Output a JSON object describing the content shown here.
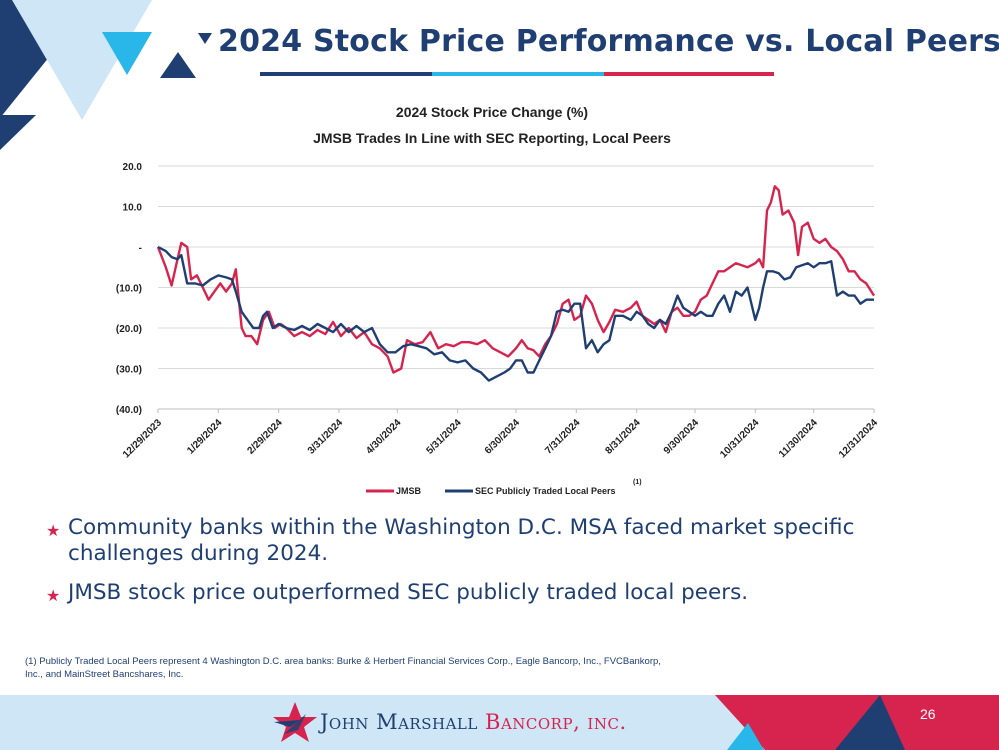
{
  "slide": {
    "title": "2024 Stock Price Performance vs. Local Peers",
    "page_number": "26",
    "brand": {
      "name_part1": "John Marshall",
      "name_part2": " Bancorp, inc."
    },
    "colors": {
      "navy": "#1f3f73",
      "red": "#d6244f",
      "cyan": "#29b6e8",
      "light_blue": "#cfe6f7"
    }
  },
  "bullets": [
    {
      "text": "Community banks within the Washington D.C. MSA faced market specific challenges during 2024."
    },
    {
      "text": "JMSB stock price outperformed SEC publicly traded local peers."
    }
  ],
  "footnote": "(1) Publicly Traded Local Peers represent 4 Washington D.C. area banks: Burke & Herbert Financial Services Corp., Eagle Bancorp, Inc., FVCBankorp, Inc., and MainStreet Bancshares, Inc.",
  "icons": {
    "bullet": "star-icon",
    "logo": "star-logo-icon"
  },
  "chart_data": {
    "type": "line",
    "title_line1": "2024 Stock Price Change (%)",
    "title_line2": "JMSB Trades In Line with SEC Reporting, Local Peers",
    "ylim": [
      -40,
      20
    ],
    "yticks": [
      20,
      10,
      0,
      -10,
      -20,
      -30,
      -40
    ],
    "ytick_labels": [
      "20.0",
      "10.0",
      "-",
      "(10.0)",
      "(20.0)",
      "(30.0)",
      "(40.0)"
    ],
    "xlim": [
      "2023-12-29",
      "2024-12-31"
    ],
    "xticks": [
      "2023-12-29",
      "2024-01-29",
      "2024-02-29",
      "2024-03-31",
      "2024-04-30",
      "2024-05-31",
      "2024-06-30",
      "2024-07-31",
      "2024-08-31",
      "2024-09-30",
      "2024-10-31",
      "2024-11-30",
      "2024-12-31"
    ],
    "xtick_labels": [
      "12/29/2023",
      "1/29/2024",
      "2/29/2024",
      "3/31/2024",
      "4/30/2024",
      "5/31/2024",
      "6/30/2024",
      "7/31/2024",
      "8/31/2024",
      "9/30/2024",
      "10/31/2024",
      "11/30/2024",
      "12/31/2024"
    ],
    "grid": "horizontal",
    "legend_position": "bottom-center",
    "legend_superscript": "(1)",
    "series": [
      {
        "name": "JMSB",
        "color": "#d6244f",
        "points": [
          [
            "2023-12-29",
            0
          ],
          [
            "2024-01-02",
            -5
          ],
          [
            "2024-01-05",
            -9.5
          ],
          [
            "2024-01-08",
            -3
          ],
          [
            "2024-01-10",
            1
          ],
          [
            "2024-01-13",
            0
          ],
          [
            "2024-01-15",
            -8
          ],
          [
            "2024-01-18",
            -7
          ],
          [
            "2024-01-21",
            -10
          ],
          [
            "2024-01-24",
            -13
          ],
          [
            "2024-01-27",
            -11
          ],
          [
            "2024-01-30",
            -9
          ],
          [
            "2024-02-02",
            -11
          ],
          [
            "2024-02-05",
            -9
          ],
          [
            "2024-02-07",
            -5.5
          ],
          [
            "2024-02-10",
            -20
          ],
          [
            "2024-02-12",
            -22
          ],
          [
            "2024-02-15",
            -22
          ],
          [
            "2024-02-18",
            -24
          ],
          [
            "2024-02-21",
            -18
          ],
          [
            "2024-02-24",
            -16
          ],
          [
            "2024-02-27",
            -20
          ],
          [
            "2024-03-01",
            -19
          ],
          [
            "2024-03-04",
            -20
          ],
          [
            "2024-03-08",
            -22
          ],
          [
            "2024-03-12",
            -21
          ],
          [
            "2024-03-16",
            -22
          ],
          [
            "2024-03-20",
            -20.5
          ],
          [
            "2024-03-24",
            -21.5
          ],
          [
            "2024-03-28",
            -18.5
          ],
          [
            "2024-04-01",
            -22
          ],
          [
            "2024-04-05",
            -20
          ],
          [
            "2024-04-09",
            -22.5
          ],
          [
            "2024-04-13",
            -21
          ],
          [
            "2024-04-17",
            -24
          ],
          [
            "2024-04-21",
            -25
          ],
          [
            "2024-04-25",
            -27
          ],
          [
            "2024-04-28",
            -31
          ],
          [
            "2024-05-02",
            -30
          ],
          [
            "2024-05-05",
            -23
          ],
          [
            "2024-05-09",
            -24
          ],
          [
            "2024-05-13",
            -23.5
          ],
          [
            "2024-05-17",
            -21
          ],
          [
            "2024-05-21",
            -25
          ],
          [
            "2024-05-25",
            -24
          ],
          [
            "2024-05-29",
            -24.5
          ],
          [
            "2024-06-02",
            -23.5
          ],
          [
            "2024-06-06",
            -23.5
          ],
          [
            "2024-06-10",
            -24
          ],
          [
            "2024-06-14",
            -23
          ],
          [
            "2024-06-18",
            -25
          ],
          [
            "2024-06-22",
            -26
          ],
          [
            "2024-06-26",
            -27
          ],
          [
            "2024-06-30",
            -25
          ],
          [
            "2024-07-03",
            -23
          ],
          [
            "2024-07-06",
            -25
          ],
          [
            "2024-07-09",
            -25.5
          ],
          [
            "2024-07-12",
            -27
          ],
          [
            "2024-07-15",
            -24
          ],
          [
            "2024-07-18",
            -22
          ],
          [
            "2024-07-21",
            -19
          ],
          [
            "2024-07-24",
            -14
          ],
          [
            "2024-07-27",
            -13
          ],
          [
            "2024-07-30",
            -18
          ],
          [
            "2024-08-02",
            -17
          ],
          [
            "2024-08-05",
            -12
          ],
          [
            "2024-08-08",
            -14
          ],
          [
            "2024-08-11",
            -18
          ],
          [
            "2024-08-14",
            -21
          ],
          [
            "2024-08-17",
            -18.5
          ],
          [
            "2024-08-20",
            -15.5
          ],
          [
            "2024-08-24",
            -16
          ],
          [
            "2024-08-28",
            -15
          ],
          [
            "2024-08-31",
            -13.5
          ],
          [
            "2024-09-03",
            -17
          ],
          [
            "2024-09-06",
            -18
          ],
          [
            "2024-09-09",
            -19
          ],
          [
            "2024-09-12",
            -18
          ],
          [
            "2024-09-15",
            -21
          ],
          [
            "2024-09-18",
            -16
          ],
          [
            "2024-09-21",
            -15
          ],
          [
            "2024-09-24",
            -17
          ],
          [
            "2024-09-27",
            -17
          ],
          [
            "2024-09-30",
            -16
          ],
          [
            "2024-10-03",
            -13
          ],
          [
            "2024-10-06",
            -12
          ],
          [
            "2024-10-09",
            -9
          ],
          [
            "2024-10-12",
            -6
          ],
          [
            "2024-10-15",
            -6
          ],
          [
            "2024-10-18",
            -5
          ],
          [
            "2024-10-21",
            -4
          ],
          [
            "2024-10-24",
            -4.5
          ],
          [
            "2024-10-27",
            -5
          ],
          [
            "2024-10-31",
            -4
          ],
          [
            "2024-11-02",
            -3
          ],
          [
            "2024-11-04",
            -5
          ],
          [
            "2024-11-06",
            9
          ],
          [
            "2024-11-08",
            11
          ],
          [
            "2024-11-10",
            15
          ],
          [
            "2024-11-12",
            14
          ],
          [
            "2024-11-14",
            8
          ],
          [
            "2024-11-17",
            9
          ],
          [
            "2024-11-20",
            6
          ],
          [
            "2024-11-22",
            -2
          ],
          [
            "2024-11-24",
            5
          ],
          [
            "2024-11-27",
            6
          ],
          [
            "2024-11-30",
            2
          ],
          [
            "2024-12-03",
            1
          ],
          [
            "2024-12-06",
            2
          ],
          [
            "2024-12-09",
            0
          ],
          [
            "2024-12-12",
            -1
          ],
          [
            "2024-12-15",
            -3
          ],
          [
            "2024-12-18",
            -6
          ],
          [
            "2024-12-21",
            -6
          ],
          [
            "2024-12-24",
            -8
          ],
          [
            "2024-12-27",
            -9
          ],
          [
            "2024-12-31",
            -12
          ]
        ]
      },
      {
        "name": "SEC Publicly Traded Local Peers",
        "color": "#1f3f73",
        "points": [
          [
            "2023-12-29",
            0
          ],
          [
            "2024-01-02",
            -1
          ],
          [
            "2024-01-05",
            -2.5
          ],
          [
            "2024-01-08",
            -3
          ],
          [
            "2024-01-10",
            -2
          ],
          [
            "2024-01-13",
            -9
          ],
          [
            "2024-01-17",
            -9
          ],
          [
            "2024-01-21",
            -9.5
          ],
          [
            "2024-01-25",
            -8
          ],
          [
            "2024-01-29",
            -7
          ],
          [
            "2024-02-02",
            -7.5
          ],
          [
            "2024-02-05",
            -8
          ],
          [
            "2024-02-07",
            -11
          ],
          [
            "2024-02-10",
            -16
          ],
          [
            "2024-02-13",
            -18
          ],
          [
            "2024-02-16",
            -20
          ],
          [
            "2024-02-19",
            -20
          ],
          [
            "2024-02-21",
            -17
          ],
          [
            "2024-02-23",
            -16
          ],
          [
            "2024-02-26",
            -20
          ],
          [
            "2024-02-29",
            -19
          ],
          [
            "2024-03-04",
            -20
          ],
          [
            "2024-03-08",
            -20.5
          ],
          [
            "2024-03-12",
            -19.5
          ],
          [
            "2024-03-16",
            -20.5
          ],
          [
            "2024-03-20",
            -19
          ],
          [
            "2024-03-24",
            -20
          ],
          [
            "2024-03-28",
            -21
          ],
          [
            "2024-04-01",
            -19
          ],
          [
            "2024-04-05",
            -21
          ],
          [
            "2024-04-09",
            -19.5
          ],
          [
            "2024-04-13",
            -21
          ],
          [
            "2024-04-17",
            -20
          ],
          [
            "2024-04-21",
            -24
          ],
          [
            "2024-04-25",
            -26
          ],
          [
            "2024-04-29",
            -26
          ],
          [
            "2024-05-03",
            -24.5
          ],
          [
            "2024-05-07",
            -24
          ],
          [
            "2024-05-11",
            -24.5
          ],
          [
            "2024-05-15",
            -25
          ],
          [
            "2024-05-19",
            -26.5
          ],
          [
            "2024-05-23",
            -26
          ],
          [
            "2024-05-27",
            -28
          ],
          [
            "2024-05-31",
            -28.5
          ],
          [
            "2024-06-04",
            -28
          ],
          [
            "2024-06-08",
            -30
          ],
          [
            "2024-06-12",
            -31
          ],
          [
            "2024-06-16",
            -33
          ],
          [
            "2024-06-20",
            -32
          ],
          [
            "2024-06-24",
            -31
          ],
          [
            "2024-06-27",
            -30
          ],
          [
            "2024-06-30",
            -28
          ],
          [
            "2024-07-03",
            -28
          ],
          [
            "2024-07-06",
            -31
          ],
          [
            "2024-07-09",
            -31
          ],
          [
            "2024-07-12",
            -28
          ],
          [
            "2024-07-15",
            -25
          ],
          [
            "2024-07-18",
            -22
          ],
          [
            "2024-07-21",
            -16
          ],
          [
            "2024-07-24",
            -15.5
          ],
          [
            "2024-07-27",
            -16
          ],
          [
            "2024-07-30",
            -14
          ],
          [
            "2024-08-02",
            -14
          ],
          [
            "2024-08-05",
            -25
          ],
          [
            "2024-08-08",
            -23
          ],
          [
            "2024-08-11",
            -26
          ],
          [
            "2024-08-14",
            -24
          ],
          [
            "2024-08-17",
            -23
          ],
          [
            "2024-08-20",
            -17
          ],
          [
            "2024-08-24",
            -17
          ],
          [
            "2024-08-28",
            -18
          ],
          [
            "2024-08-31",
            -16
          ],
          [
            "2024-09-03",
            -17
          ],
          [
            "2024-09-06",
            -19
          ],
          [
            "2024-09-09",
            -20
          ],
          [
            "2024-09-12",
            -18
          ],
          [
            "2024-09-15",
            -19
          ],
          [
            "2024-09-18",
            -16
          ],
          [
            "2024-09-21",
            -12
          ],
          [
            "2024-09-24",
            -15
          ],
          [
            "2024-09-27",
            -16
          ],
          [
            "2024-09-30",
            -17
          ],
          [
            "2024-10-03",
            -16
          ],
          [
            "2024-10-06",
            -17
          ],
          [
            "2024-10-09",
            -17
          ],
          [
            "2024-10-12",
            -14
          ],
          [
            "2024-10-15",
            -12
          ],
          [
            "2024-10-18",
            -16
          ],
          [
            "2024-10-21",
            -11
          ],
          [
            "2024-10-24",
            -12
          ],
          [
            "2024-10-27",
            -10
          ],
          [
            "2024-10-31",
            -18
          ],
          [
            "2024-11-02",
            -15
          ],
          [
            "2024-11-04",
            -10
          ],
          [
            "2024-11-06",
            -6
          ],
          [
            "2024-11-09",
            -6
          ],
          [
            "2024-11-12",
            -6.5
          ],
          [
            "2024-11-15",
            -8
          ],
          [
            "2024-11-18",
            -7.5
          ],
          [
            "2024-11-21",
            -5
          ],
          [
            "2024-11-24",
            -4.5
          ],
          [
            "2024-11-27",
            -4
          ],
          [
            "2024-11-30",
            -5
          ],
          [
            "2024-12-03",
            -4
          ],
          [
            "2024-12-06",
            -4
          ],
          [
            "2024-12-09",
            -3.5
          ],
          [
            "2024-12-12",
            -12
          ],
          [
            "2024-12-15",
            -11
          ],
          [
            "2024-12-18",
            -12
          ],
          [
            "2024-12-21",
            -12
          ],
          [
            "2024-12-24",
            -14
          ],
          [
            "2024-12-27",
            -13
          ],
          [
            "2024-12-31",
            -13
          ]
        ]
      }
    ]
  }
}
